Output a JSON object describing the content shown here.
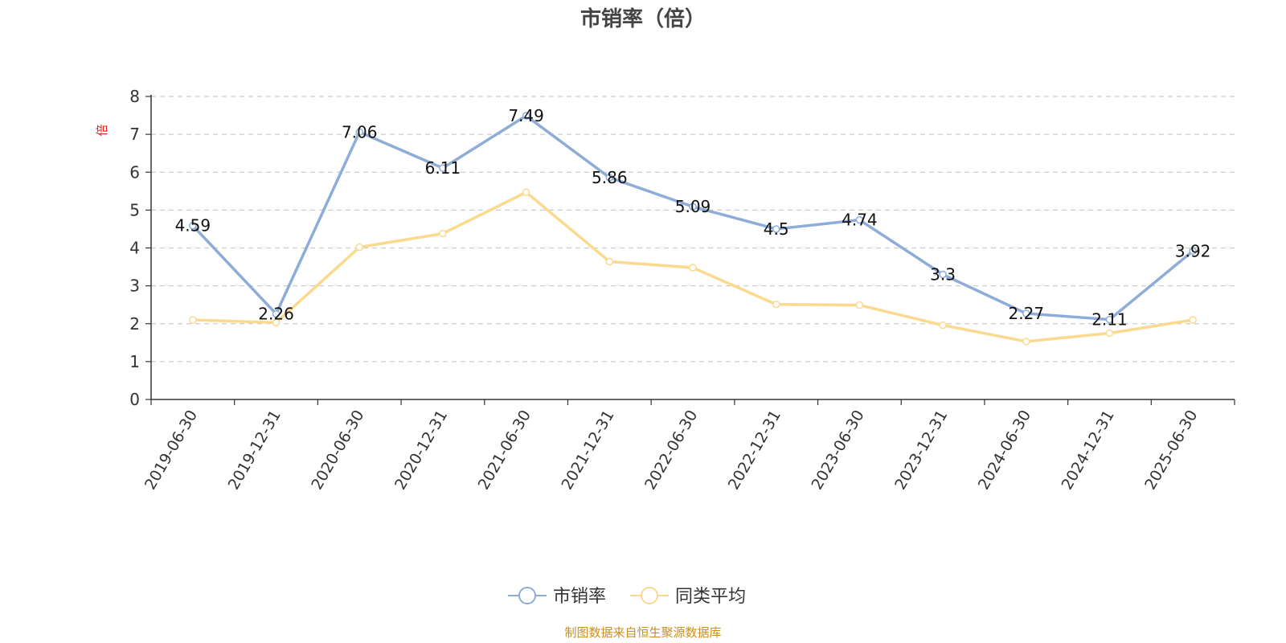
{
  "chart_data": {
    "type": "line",
    "title": "市销率（倍）",
    "ylabel": "倍",
    "xlabel": "",
    "ylim": [
      0,
      8
    ],
    "yticks": [
      0,
      1,
      2,
      3,
      4,
      5,
      6,
      7,
      8
    ],
    "grid": true,
    "legend_position": "bottom-center",
    "categories": [
      "2019-06-30",
      "2019-12-31",
      "2020-06-30",
      "2020-12-31",
      "2021-06-30",
      "2021-12-31",
      "2022-06-30",
      "2022-12-31",
      "2023-06-30",
      "2023-12-31",
      "2024-06-30",
      "2024-12-31",
      "2025-06-30"
    ],
    "series": [
      {
        "name": "市销率",
        "color": "#8eacd8",
        "values": [
          4.59,
          2.26,
          7.06,
          6.11,
          7.49,
          5.86,
          5.09,
          4.5,
          4.74,
          3.3,
          2.27,
          2.11,
          3.92
        ],
        "data_labels": [
          "4.59",
          "2.26",
          "7.06",
          "6.11",
          "7.49",
          "5.86",
          "5.09",
          "4.5",
          "4.74",
          "3.3",
          "2.27",
          "2.11",
          "3.92"
        ]
      },
      {
        "name": "同类平均",
        "color": "#fbd98f",
        "values": [
          2.1,
          2.03,
          4.02,
          4.38,
          5.47,
          3.64,
          3.48,
          2.51,
          2.49,
          1.96,
          1.53,
          1.75,
          2.1
        ]
      }
    ]
  },
  "source_note": "制图数据来自恒生聚源数据库"
}
